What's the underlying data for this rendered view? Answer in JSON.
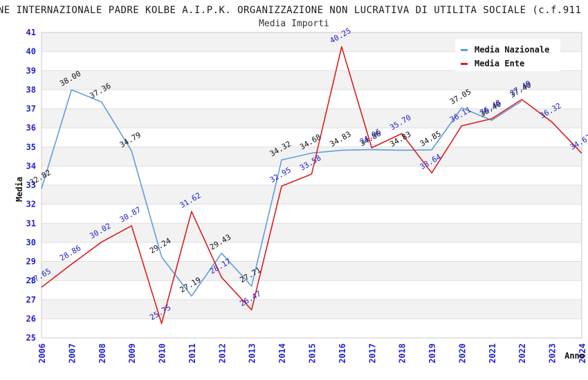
{
  "title": "ONE INTERNAZIONALE PADRE KOLBE A.I.P.K. ORGANIZZAZIONE NON LUCRATIVA DI UTILITA SOCIALE (c.f.911",
  "subtitle": "Media Importi",
  "legend": [
    {
      "label": "Media Nazionale",
      "color": "#5f9ddd"
    },
    {
      "label": "Media Ente",
      "color": "#dd1c1c"
    }
  ],
  "colors": {
    "tick_blue": "#2222cc",
    "band_gray": "#f2f2f2",
    "gridline": "#dedede",
    "plot_border": "#c8c8c8",
    "black_label": "#111111"
  },
  "chart_data": {
    "type": "line",
    "x": [
      2006,
      2007,
      2008,
      2009,
      2010,
      2011,
      2012,
      2013,
      2014,
      2015,
      2016,
      2017,
      2018,
      2019,
      2020,
      2021,
      2022,
      2023,
      2024
    ],
    "xlabel": "Anno",
    "ylabel": "Media",
    "ylim": [
      25,
      41
    ],
    "grid": true,
    "legend_position": "top-right",
    "series": [
      {
        "name": "Media Nazionale",
        "color": "#5f9ddd",
        "label_color": "#111111",
        "values": [
          32.82,
          38.0,
          37.36,
          34.79,
          29.24,
          27.19,
          29.43,
          27.71,
          34.32,
          34.68,
          34.83,
          34.86,
          34.83,
          34.85,
          37.05,
          36.4,
          37.4,
          null,
          null
        ]
      },
      {
        "name": "Media Ente",
        "color": "#dd1c1c",
        "label_color": "#2222cc",
        "values": [
          27.65,
          28.86,
          30.02,
          30.87,
          25.75,
          31.62,
          28.17,
          26.47,
          32.95,
          33.58,
          40.25,
          34.96,
          35.7,
          33.64,
          36.11,
          36.48,
          37.49,
          36.32,
          34.67
        ]
      }
    ]
  }
}
